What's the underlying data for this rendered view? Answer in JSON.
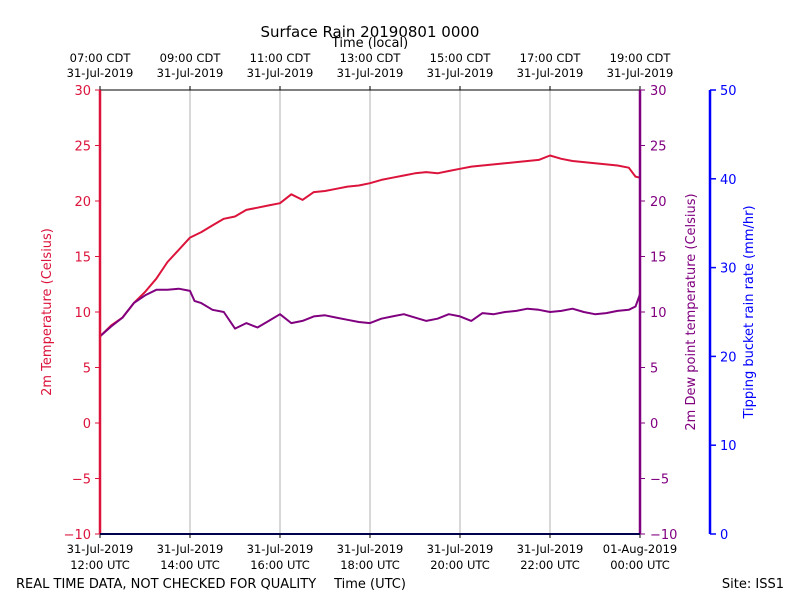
{
  "chart_data": {
    "type": "line",
    "title": "Surface Rain 20190801 0000",
    "top_xlabel": "Time (local)",
    "xlabel": "Time (UTC)",
    "footer_left": "REAL TIME DATA, NOT CHECKED FOR QUALITY",
    "footer_right": "Site: ISS1",
    "x_range_hours_utc": [
      12,
      24
    ],
    "bottom_ticks": [
      {
        "hour": 12,
        "line1": "31-Jul-2019",
        "line2": "12:00 UTC"
      },
      {
        "hour": 14,
        "line1": "31-Jul-2019",
        "line2": "14:00 UTC"
      },
      {
        "hour": 16,
        "line1": "31-Jul-2019",
        "line2": "16:00 UTC"
      },
      {
        "hour": 18,
        "line1": "31-Jul-2019",
        "line2": "18:00 UTC"
      },
      {
        "hour": 20,
        "line1": "31-Jul-2019",
        "line2": "20:00 UTC"
      },
      {
        "hour": 22,
        "line1": "31-Jul-2019",
        "line2": "22:00 UTC"
      },
      {
        "hour": 24,
        "line1": "01-Aug-2019",
        "line2": "00:00 UTC"
      }
    ],
    "top_ticks": [
      {
        "hour": 12,
        "line1": "07:00 CDT",
        "line2": "31-Jul-2019"
      },
      {
        "hour": 14,
        "line1": "09:00 CDT",
        "line2": "31-Jul-2019"
      },
      {
        "hour": 16,
        "line1": "11:00 CDT",
        "line2": "31-Jul-2019"
      },
      {
        "hour": 18,
        "line1": "13:00 CDT",
        "line2": "31-Jul-2019"
      },
      {
        "hour": 20,
        "line1": "15:00 CDT",
        "line2": "31-Jul-2019"
      },
      {
        "hour": 22,
        "line1": "17:00 CDT",
        "line2": "31-Jul-2019"
      },
      {
        "hour": 24,
        "line1": "19:00 CDT",
        "line2": "31-Jul-2019"
      }
    ],
    "left_axis": {
      "label": "2m Temperature (Celsius)",
      "color": "#dc143c",
      "ylim": [
        -10,
        30
      ],
      "ticks": [
        "−10",
        "−5",
        "0",
        "5",
        "10",
        "15",
        "20",
        "25",
        "30"
      ]
    },
    "right_axis": {
      "label": "2m Dew point temperature (Celsius)",
      "color": "#800080",
      "ylim": [
        -10,
        30
      ],
      "ticks": [
        "−10",
        "−5",
        "0",
        "5",
        "10",
        "15",
        "20",
        "25",
        "30"
      ]
    },
    "rain_axis": {
      "label": "Tipping bucket rain rate (mm/hr)",
      "color": "#0000ff",
      "ylim": [
        0,
        50
      ],
      "ticks": [
        "0",
        "10",
        "20",
        "30",
        "40",
        "50"
      ]
    },
    "series": [
      {
        "name": "2m Temperature",
        "color": "#dc143c",
        "x": [
          12.0,
          12.25,
          12.5,
          12.75,
          13.0,
          13.25,
          13.5,
          13.75,
          14.0,
          14.25,
          14.5,
          14.75,
          15.0,
          15.25,
          15.5,
          15.75,
          16.0,
          16.25,
          16.5,
          16.75,
          17.0,
          17.25,
          17.5,
          17.75,
          18.0,
          18.25,
          18.5,
          18.75,
          19.0,
          19.25,
          19.5,
          19.75,
          20.0,
          20.25,
          20.5,
          20.75,
          21.0,
          21.25,
          21.5,
          21.75,
          22.0,
          22.25,
          22.5,
          22.75,
          23.0,
          23.25,
          23.5,
          23.75,
          23.9,
          24.0
        ],
        "values": [
          7.8,
          8.8,
          9.5,
          10.8,
          11.8,
          13.0,
          14.5,
          15.6,
          16.7,
          17.2,
          17.8,
          18.4,
          18.6,
          19.2,
          19.4,
          19.6,
          19.8,
          20.6,
          20.1,
          20.8,
          20.9,
          21.1,
          21.3,
          21.4,
          21.6,
          21.9,
          22.1,
          22.3,
          22.5,
          22.6,
          22.5,
          22.7,
          22.9,
          23.1,
          23.2,
          23.3,
          23.4,
          23.5,
          23.6,
          23.7,
          24.1,
          23.8,
          23.6,
          23.5,
          23.4,
          23.3,
          23.2,
          23.0,
          22.2,
          22.1
        ]
      },
      {
        "name": "2m Dew point temperature",
        "color": "#800080",
        "x": [
          12.0,
          12.25,
          12.5,
          12.75,
          13.0,
          13.25,
          13.5,
          13.75,
          14.0,
          14.1,
          14.25,
          14.5,
          14.75,
          15.0,
          15.25,
          15.5,
          15.75,
          16.0,
          16.25,
          16.5,
          16.75,
          17.0,
          17.25,
          17.5,
          17.75,
          18.0,
          18.25,
          18.5,
          18.75,
          19.0,
          19.25,
          19.5,
          19.75,
          20.0,
          20.25,
          20.5,
          20.75,
          21.0,
          21.25,
          21.5,
          21.75,
          22.0,
          22.25,
          22.5,
          22.75,
          23.0,
          23.25,
          23.5,
          23.75,
          23.9,
          24.0
        ],
        "values": [
          7.8,
          8.7,
          9.5,
          10.8,
          11.5,
          12.0,
          12.0,
          12.1,
          11.9,
          11.0,
          10.8,
          10.2,
          10.0,
          8.5,
          9.0,
          8.6,
          9.2,
          9.8,
          9.0,
          9.2,
          9.6,
          9.7,
          9.5,
          9.3,
          9.1,
          9.0,
          9.4,
          9.6,
          9.8,
          9.5,
          9.2,
          9.4,
          9.8,
          9.6,
          9.2,
          9.9,
          9.8,
          10.0,
          10.1,
          10.3,
          10.2,
          10.0,
          10.1,
          10.3,
          10.0,
          9.8,
          9.9,
          10.1,
          10.2,
          10.5,
          11.6
        ]
      }
    ]
  }
}
